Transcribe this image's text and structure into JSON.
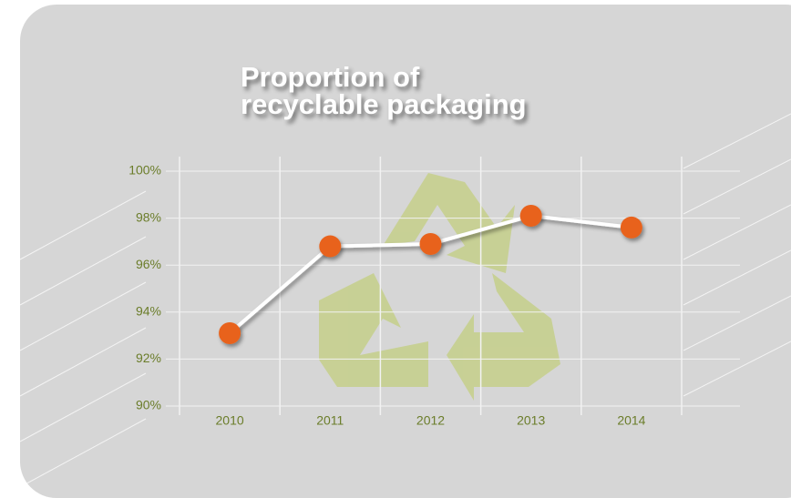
{
  "chart_data": {
    "type": "line",
    "title": [
      "Proportion of",
      "recyclable packaging"
    ],
    "categories": [
      "2010",
      "2011",
      "2012",
      "2013",
      "2014"
    ],
    "series": [
      {
        "name": "Recyclable packaging",
        "color": "#e8621a",
        "values": [
          93.1,
          96.8,
          96.9,
          98.1,
          97.6
        ]
      }
    ],
    "ylim": [
      90,
      100
    ],
    "yticks": [
      {
        "value": 90,
        "label": "90%"
      },
      {
        "value": 92,
        "label": "92%"
      },
      {
        "value": 94,
        "label": "94%"
      },
      {
        "value": 96,
        "label": "96%"
      },
      {
        "value": 98,
        "label": "98%"
      },
      {
        "value": 100,
        "label": "100%"
      }
    ],
    "grid": true
  }
}
